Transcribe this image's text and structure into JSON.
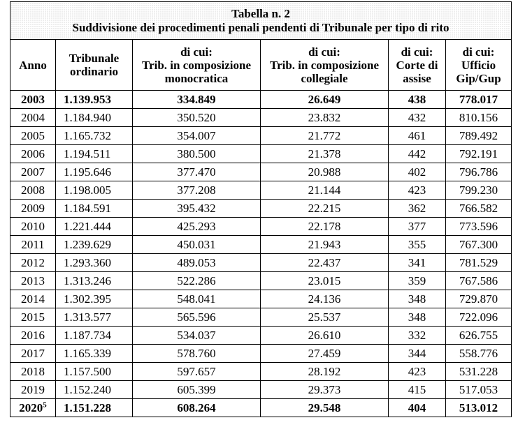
{
  "table": {
    "title": "Tabella n. 2",
    "subtitle": "Suddivisione dei procedimenti penali pendenti di Tribunale per tipo di rito",
    "headers": [
      {
        "lines": [
          "Anno"
        ]
      },
      {
        "lines": [
          "Tribunale",
          "ordinario"
        ]
      },
      {
        "lines": [
          "di cui:",
          "Trib. in composizione",
          "monocratica"
        ]
      },
      {
        "lines": [
          "di cui:",
          "Trib. in composizione",
          "collegiale"
        ]
      },
      {
        "lines": [
          "di cui:",
          "Corte di",
          "assise"
        ]
      },
      {
        "lines": [
          "di cui:",
          "Ufficio",
          "Gip/Gup"
        ]
      }
    ],
    "rows": [
      {
        "anno": "2003",
        "sup": "",
        "bold": true,
        "trib": "1.139.953",
        "mono": "334.849",
        "coll": "26.649",
        "assise": "438",
        "gip": "778.017"
      },
      {
        "anno": "2004",
        "sup": "",
        "bold": false,
        "trib": "1.184.940",
        "mono": "350.520",
        "coll": "23.832",
        "assise": "432",
        "gip": "810.156"
      },
      {
        "anno": "2005",
        "sup": "",
        "bold": false,
        "trib": "1.165.732",
        "mono": "354.007",
        "coll": "21.772",
        "assise": "461",
        "gip": "789.492"
      },
      {
        "anno": "2006",
        "sup": "",
        "bold": false,
        "trib": "1.194.511",
        "mono": "380.500",
        "coll": "21.378",
        "assise": "442",
        "gip": "792.191"
      },
      {
        "anno": "2007",
        "sup": "",
        "bold": false,
        "trib": "1.195.646",
        "mono": "377.470",
        "coll": "20.988",
        "assise": "402",
        "gip": "796.786"
      },
      {
        "anno": "2008",
        "sup": "",
        "bold": false,
        "trib": "1.198.005",
        "mono": "377.208",
        "coll": "21.144",
        "assise": "423",
        "gip": "799.230"
      },
      {
        "anno": "2009",
        "sup": "",
        "bold": false,
        "trib": "1.184.591",
        "mono": "395.432",
        "coll": "22.215",
        "assise": "362",
        "gip": "766.582"
      },
      {
        "anno": "2010",
        "sup": "",
        "bold": false,
        "trib": "1.221.444",
        "mono": "425.293",
        "coll": "22.178",
        "assise": "377",
        "gip": "773.596"
      },
      {
        "anno": "2011",
        "sup": "",
        "bold": false,
        "trib": "1.239.629",
        "mono": "450.031",
        "coll": "21.943",
        "assise": "355",
        "gip": "767.300"
      },
      {
        "anno": "2012",
        "sup": "",
        "bold": false,
        "trib": "1.293.360",
        "mono": "489.053",
        "coll": "22.437",
        "assise": "341",
        "gip": "781.529"
      },
      {
        "anno": "2013",
        "sup": "",
        "bold": false,
        "trib": "1.313.246",
        "mono": "522.286",
        "coll": "23.015",
        "assise": "359",
        "gip": "767.586"
      },
      {
        "anno": "2014",
        "sup": "",
        "bold": false,
        "trib": "1.302.395",
        "mono": "548.041",
        "coll": "24.136",
        "assise": "348",
        "gip": "729.870"
      },
      {
        "anno": "2015",
        "sup": "",
        "bold": false,
        "trib": "1.313.577",
        "mono": "565.596",
        "coll": "25.537",
        "assise": "348",
        "gip": "722.096"
      },
      {
        "anno": "2016",
        "sup": "",
        "bold": false,
        "trib": "1.187.734",
        "mono": "534.037",
        "coll": "26.610",
        "assise": "332",
        "gip": "626.755"
      },
      {
        "anno": "2017",
        "sup": "",
        "bold": false,
        "trib": "1.165.339",
        "mono": "578.760",
        "coll": "27.459",
        "assise": "344",
        "gip": "558.776"
      },
      {
        "anno": "2018",
        "sup": "",
        "bold": false,
        "trib": "1.157.500",
        "mono": "597.657",
        "coll": "28.192",
        "assise": "423",
        "gip": "531.228"
      },
      {
        "anno": "2019",
        "sup": "",
        "bold": false,
        "trib": "1.152.240",
        "mono": "605.399",
        "coll": "29.373",
        "assise": "415",
        "gip": "517.053"
      },
      {
        "anno": "2020",
        "sup": "5",
        "bold": true,
        "trib": "1.151.228",
        "mono": "608.264",
        "coll": "29.548",
        "assise": "404",
        "gip": "513.012"
      }
    ]
  }
}
